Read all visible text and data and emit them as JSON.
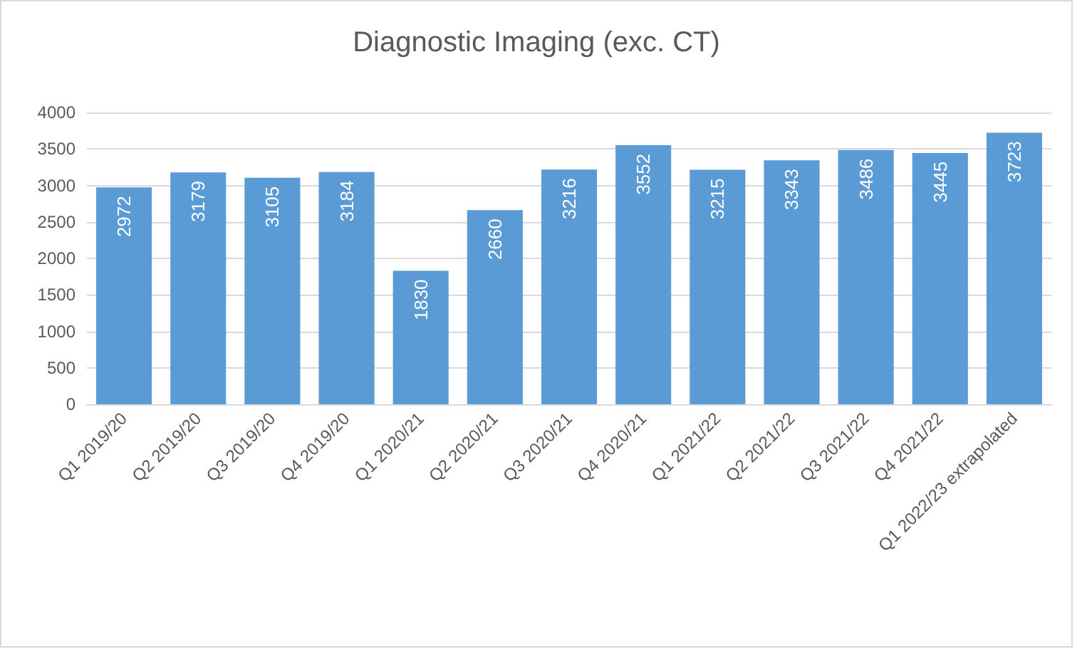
{
  "chart_data": {
    "type": "bar",
    "title": "Diagnostic Imaging (exc. CT)",
    "categories": [
      "Q1 2019/20",
      "Q2 2019/20",
      "Q3 2019/20",
      "Q4 2019/20",
      "Q1 2020/21",
      "Q2 2020/21",
      "Q3 2020/21",
      "Q4 2020/21",
      "Q1 2021/22",
      "Q2 2021/22",
      "Q3 2021/22",
      "Q4 2021/22",
      "Q1 2022/23 extrapolated"
    ],
    "values": [
      2972,
      3179,
      3105,
      3184,
      1830,
      2660,
      3216,
      3552,
      3215,
      3343,
      3486,
      3445,
      3723
    ],
    "color": "#5b9bd5",
    "ylim": [
      0,
      4000
    ],
    "yticks": [
      0,
      500,
      1000,
      1500,
      2000,
      2500,
      3000,
      3500,
      4000
    ],
    "grid": "y",
    "data_labels": true
  }
}
